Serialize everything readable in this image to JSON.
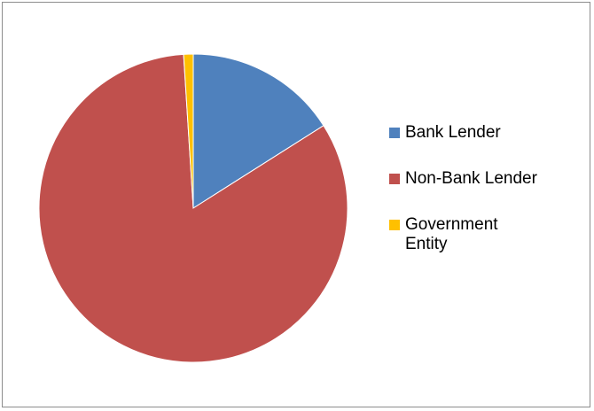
{
  "chart_data": {
    "type": "pie",
    "title": "",
    "slices": [
      {
        "label": "Bank Lender",
        "value": 16,
        "color": "#4f81bd"
      },
      {
        "label": "Non-Bank Lender",
        "value": 83,
        "color": "#c0504d"
      },
      {
        "label": "Government Entity",
        "value": 1,
        "color": "#ffc000"
      }
    ],
    "legend_position": "right"
  }
}
